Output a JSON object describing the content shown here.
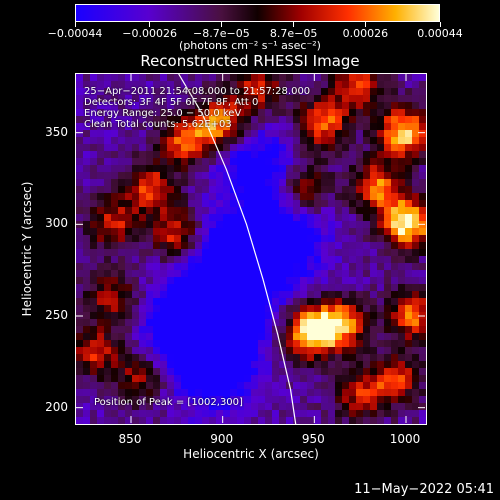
{
  "colorbar": {
    "ticks": [
      {
        "label": "−0.00044",
        "value": -0.00044
      },
      {
        "label": "−0.00026",
        "value": -0.00026
      },
      {
        "label": "−8.7e−05",
        "value": -8.7e-05
      },
      {
        "label": "8.7e−05",
        "value": 8.7e-05
      },
      {
        "label": "0.00026",
        "value": 0.00026
      },
      {
        "label": "0.00044",
        "value": 0.00044
      }
    ],
    "range": [
      -0.00044,
      0.00044
    ],
    "unit_label": "(photons cm⁻² s⁻¹ asec⁻²)"
  },
  "chart_data": {
    "type": "heatmap",
    "title": "Reconstructed RHESSI Image",
    "xlabel": "Heliocentric X (arcsec)",
    "ylabel": "Heliocentric Y (arcsec)",
    "xlim": [
      820,
      1012
    ],
    "ylim": [
      190,
      382
    ],
    "x_ticks": [
      850,
      900,
      950,
      1000
    ],
    "y_ticks": [
      200,
      250,
      300,
      350
    ],
    "annotations": {
      "time_range": "25−Apr−2011 21:54:08.000 to 21:57:28.000",
      "detectors": "Detectors: 3F 4F 5F 6F 7F 8F, Att 0",
      "energy": "Energy Range: 25.0 − 50.0 keV",
      "clean": "Clean      Total counts: 5.62E+03",
      "peak": "Position of Peak = [1002,300]"
    },
    "peak_position": [
      1002,
      300
    ],
    "limb_curve": [
      [
        876,
        382
      ],
      [
        889,
        360
      ],
      [
        902,
        330
      ],
      [
        913,
        300
      ],
      [
        922,
        270
      ],
      [
        930,
        240
      ],
      [
        937,
        210
      ],
      [
        940,
        190
      ]
    ],
    "bright_sources": [
      {
        "x": 1002,
        "y": 300,
        "intensity": 1.0
      },
      {
        "x": 1000,
        "y": 350,
        "intensity": 0.9
      },
      {
        "x": 948,
        "y": 240,
        "intensity": 0.95
      },
      {
        "x": 965,
        "y": 245,
        "intensity": 0.8
      },
      {
        "x": 985,
        "y": 320,
        "intensity": 0.7
      },
      {
        "x": 955,
        "y": 355,
        "intensity": 0.7
      },
      {
        "x": 945,
        "y": 320,
        "intensity": 0.55
      },
      {
        "x": 900,
        "y": 355,
        "intensity": 0.75
      },
      {
        "x": 880,
        "y": 345,
        "intensity": 0.65
      },
      {
        "x": 860,
        "y": 320,
        "intensity": 0.6
      },
      {
        "x": 840,
        "y": 300,
        "intensity": 0.55
      },
      {
        "x": 875,
        "y": 295,
        "intensity": 0.6
      },
      {
        "x": 830,
        "y": 230,
        "intensity": 0.55
      },
      {
        "x": 840,
        "y": 260,
        "intensity": 0.5
      },
      {
        "x": 855,
        "y": 215,
        "intensity": 0.45
      },
      {
        "x": 995,
        "y": 215,
        "intensity": 0.6
      },
      {
        "x": 975,
        "y": 205,
        "intensity": 0.5
      },
      {
        "x": 1005,
        "y": 250,
        "intensity": 0.7
      },
      {
        "x": 920,
        "y": 375,
        "intensity": 0.55
      },
      {
        "x": 975,
        "y": 375,
        "intensity": 0.6
      }
    ],
    "dark_regions": [
      {
        "x": 910,
        "y": 280,
        "intensity": -1.0
      },
      {
        "x": 900,
        "y": 250,
        "intensity": -0.8
      },
      {
        "x": 880,
        "y": 245,
        "intensity": -0.6
      },
      {
        "x": 895,
        "y": 220,
        "intensity": -0.6
      },
      {
        "x": 935,
        "y": 290,
        "intensity": -0.5
      },
      {
        "x": 920,
        "y": 330,
        "intensity": -0.5
      }
    ]
  },
  "footer": {
    "timestamp": "11−May−2022 05:41"
  }
}
